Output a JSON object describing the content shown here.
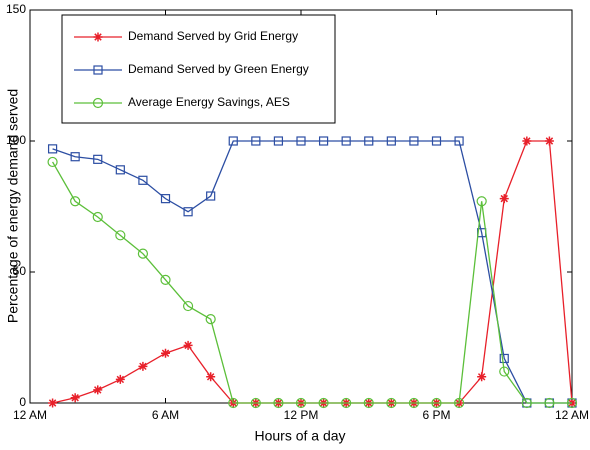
{
  "chart_data": {
    "type": "line",
    "xlabel": "Hours of a day",
    "ylabel": "Percentage of energy demand served",
    "x": [
      1,
      2,
      3,
      4,
      5,
      6,
      7,
      8,
      9,
      10,
      11,
      12,
      13,
      14,
      15,
      16,
      17,
      18,
      19,
      20,
      21,
      22,
      23,
      24
    ],
    "xlim": [
      0,
      24
    ],
    "xticks": [
      {
        "value": 0,
        "label": "12 AM"
      },
      {
        "value": 6,
        "label": "6 AM"
      },
      {
        "value": 12,
        "label": "12 PM"
      },
      {
        "value": 18,
        "label": "6 PM"
      },
      {
        "value": 24,
        "label": "12 AM"
      }
    ],
    "ylim": [
      0,
      150
    ],
    "yticks": [
      0,
      50,
      100,
      150
    ],
    "grid": false,
    "legend": "upper left",
    "series": [
      {
        "name": "Demand Served by Grid Energy",
        "color": "#e8202a",
        "marker": "star",
        "values": [
          0,
          2,
          5,
          9,
          14,
          19,
          22,
          10,
          0,
          0,
          0,
          0,
          0,
          0,
          0,
          0,
          0,
          0,
          0,
          10,
          78,
          100,
          100,
          0
        ]
      },
      {
        "name": "Demand Served by Green Energy",
        "color": "#2c4ea3",
        "marker": "square",
        "values": [
          97,
          94,
          93,
          89,
          85,
          78,
          73,
          79,
          100,
          100,
          100,
          100,
          100,
          100,
          100,
          100,
          100,
          100,
          100,
          65,
          17,
          0,
          0,
          0
        ]
      },
      {
        "name": "Average Energy Savings, AES",
        "color": "#5cbf3a",
        "marker": "circle",
        "values": [
          92,
          77,
          71,
          64,
          57,
          47,
          37,
          32,
          0,
          0,
          0,
          0,
          0,
          0,
          0,
          0,
          0,
          0,
          0,
          77,
          12,
          0,
          0,
          0
        ]
      }
    ]
  }
}
